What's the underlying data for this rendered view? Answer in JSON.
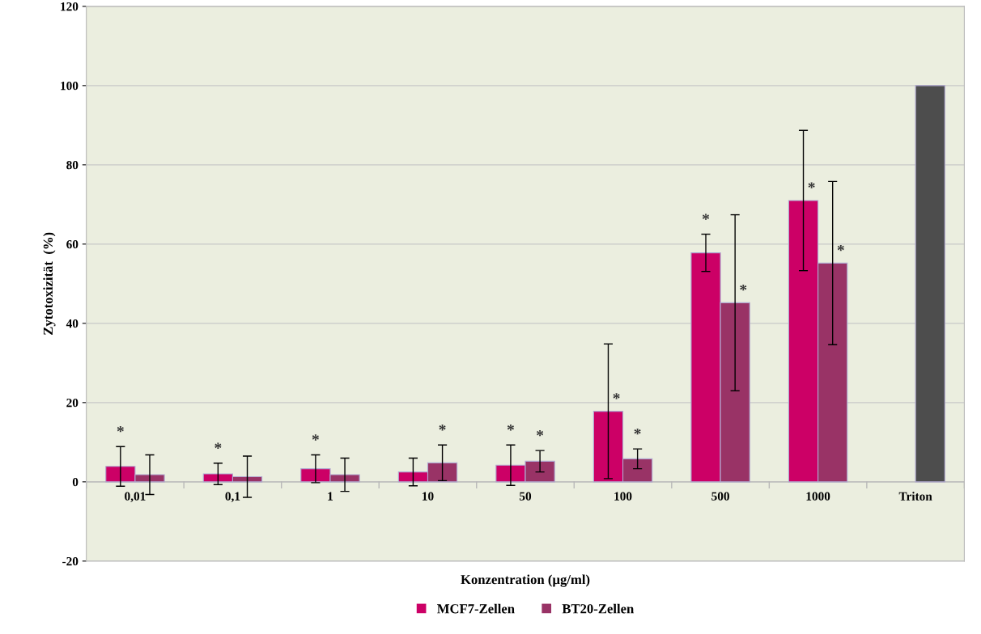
{
  "chart_data": {
    "type": "bar",
    "xlabel": "Konzentration (µg/ml)",
    "ylabel": "Zytotoxizität  (%)",
    "categories": [
      "0,01",
      "0,1",
      "1",
      "10",
      "50",
      "100",
      "500",
      "1000",
      "Triton"
    ],
    "series": [
      {
        "name": "MCF7-Zellen",
        "color": "#cc0066",
        "values": [
          3.9,
          2.0,
          3.3,
          2.5,
          4.2,
          17.8,
          57.8,
          71.0,
          null
        ],
        "errors": [
          5.0,
          2.7,
          3.5,
          3.5,
          5.1,
          17.0,
          4.7,
          17.7,
          null
        ],
        "value_labels": [
          "*",
          "*",
          "*",
          null,
          "*",
          "*",
          "*",
          "*",
          null
        ]
      },
      {
        "name": "BT20-Zellen",
        "color": "#993366",
        "colors": [
          "#993366",
          "#993366",
          "#993366",
          "#993366",
          "#993366",
          "#993366",
          "#993366",
          "#993366",
          "#4d4d4d"
        ],
        "values": [
          1.8,
          1.3,
          1.8,
          4.8,
          5.2,
          5.8,
          45.2,
          55.2,
          100
        ],
        "errors": [
          5.0,
          5.2,
          4.2,
          4.5,
          2.7,
          2.5,
          22.2,
          20.6,
          null
        ],
        "value_labels": [
          null,
          null,
          null,
          "*",
          "*",
          "*",
          "*",
          "*",
          null
        ]
      }
    ],
    "ylim": [
      -20,
      120
    ],
    "yticks": [
      -20,
      0,
      20,
      40,
      60,
      80,
      100,
      120
    ],
    "grid": "y",
    "legend": "bottom"
  }
}
